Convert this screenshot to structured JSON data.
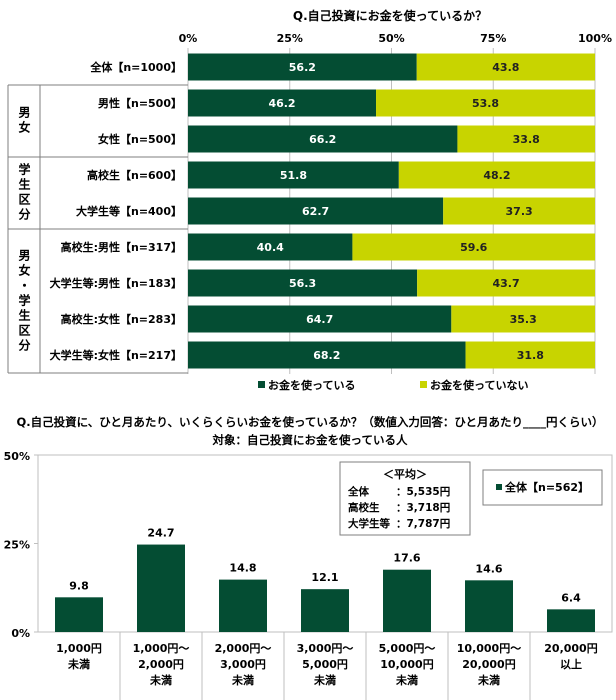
{
  "colors": {
    "used": "#044d33",
    "not_used": "#c8d400",
    "grid": "#bfbfbf",
    "border": "#7f7f7f"
  },
  "chart_data": [
    {
      "type": "bar",
      "orientation": "horizontal-stacked",
      "title": "Q.自己投資にお金を使っているか？",
      "x_ticks": [
        "0%",
        "25%",
        "50%",
        "75%",
        "100%"
      ],
      "xlim": [
        0,
        100
      ],
      "grid": true,
      "legend_position": "bottom",
      "groups": [
        {
          "label": "",
          "rows": [
            0
          ]
        },
        {
          "label": "男女",
          "rows": [
            1,
            2
          ]
        },
        {
          "label": "学生区分",
          "rows": [
            3,
            4
          ]
        },
        {
          "label": "男女・学生区分",
          "rows": [
            5,
            6,
            7,
            8
          ]
        }
      ],
      "categories": [
        "全体【n=1000】",
        "男性【n=500】",
        "女性【n=500】",
        "高校生【n=600】",
        "大学生等【n=400】",
        "高校生:男性【n=317】",
        "大学生等:男性【n=183】",
        "高校生:女性【n=283】",
        "大学生等:女性【n=217】"
      ],
      "series": [
        {
          "name": "お金を使っている",
          "values": [
            56.2,
            46.2,
            66.2,
            51.8,
            62.7,
            40.4,
            56.3,
            64.7,
            68.2
          ]
        },
        {
          "name": "お金を使っていない",
          "values": [
            43.8,
            53.8,
            33.8,
            48.2,
            37.3,
            59.6,
            43.7,
            35.3,
            31.8
          ]
        }
      ]
    },
    {
      "type": "bar",
      "title": "Q.自己投資に、ひと月あたり、いくらくらいお金を使っているか？（数値入力回答：ひと月あたり____円くらい）",
      "subtitle": "対象：自己投資にお金を使っている人",
      "y_ticks": [
        "0%",
        "25%",
        "50%"
      ],
      "ylim": [
        0,
        50
      ],
      "legend_position": "top-right",
      "categories": [
        [
          "1,000円",
          "未満"
        ],
        [
          "1,000円～",
          "2,000円",
          "未満"
        ],
        [
          "2,000円～",
          "3,000円",
          "未満"
        ],
        [
          "3,000円～",
          "5,000円",
          "未満"
        ],
        [
          "5,000円～",
          "10,000円",
          "未満"
        ],
        [
          "10,000円～",
          "20,000円",
          "未満"
        ],
        [
          "20,000円",
          "以上"
        ]
      ],
      "series": [
        {
          "name": "全体【n=562】",
          "values": [
            9.8,
            24.7,
            14.8,
            12.1,
            17.6,
            14.6,
            6.4
          ]
        }
      ],
      "annotation": {
        "heading": "＜平均＞",
        "rows": [
          {
            "label": "全体",
            "value": "：5,535円"
          },
          {
            "label": "高校生",
            "value": "：3,718円"
          },
          {
            "label": "大学生等",
            "value": "：7,787円"
          }
        ]
      }
    }
  ]
}
